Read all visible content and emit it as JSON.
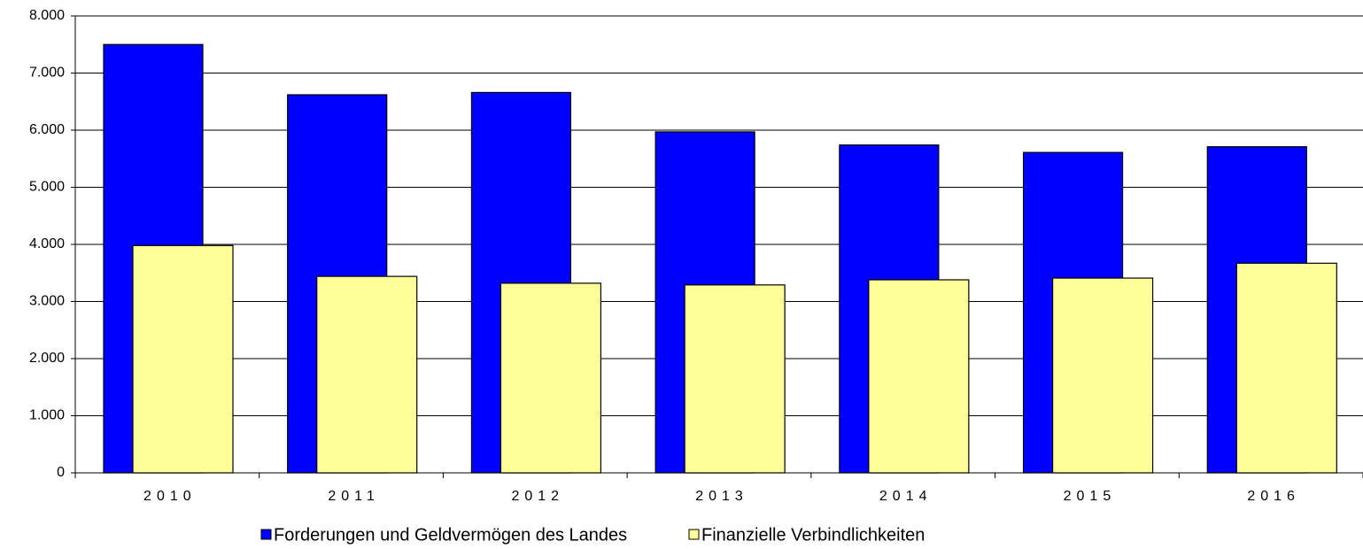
{
  "chart_data": {
    "type": "bar",
    "categories": [
      "2010",
      "2011",
      "2012",
      "2013",
      "2014",
      "2015",
      "2016"
    ],
    "series": [
      {
        "name": "Forderungen und Geldvermögen des Landes",
        "color": "#0000ff",
        "values": [
          7500,
          6620,
          6660,
          5970,
          5740,
          5610,
          5710
        ]
      },
      {
        "name": "Finanzielle Verbindlichkeiten",
        "color": "#ffff99",
        "values": [
          3980,
          3440,
          3320,
          3290,
          3380,
          3410,
          3670
        ]
      }
    ],
    "ylim": [
      0,
      8000
    ],
    "yticks": [
      0,
      {
        "value": 1000,
        "label": "1.000"
      },
      {
        "value": 2000,
        "label": "2.000"
      },
      {
        "value": 3000,
        "label": "3.000"
      },
      {
        "value": 4000,
        "label": "4.000"
      },
      {
        "value": 5000,
        "label": "5.000"
      },
      {
        "value": 6000,
        "label": "6.000"
      },
      {
        "value": 7000,
        "label": "7.000"
      },
      {
        "value": 8000,
        "label": "8.000"
      }
    ],
    "grid": true,
    "legend": "bottom"
  }
}
